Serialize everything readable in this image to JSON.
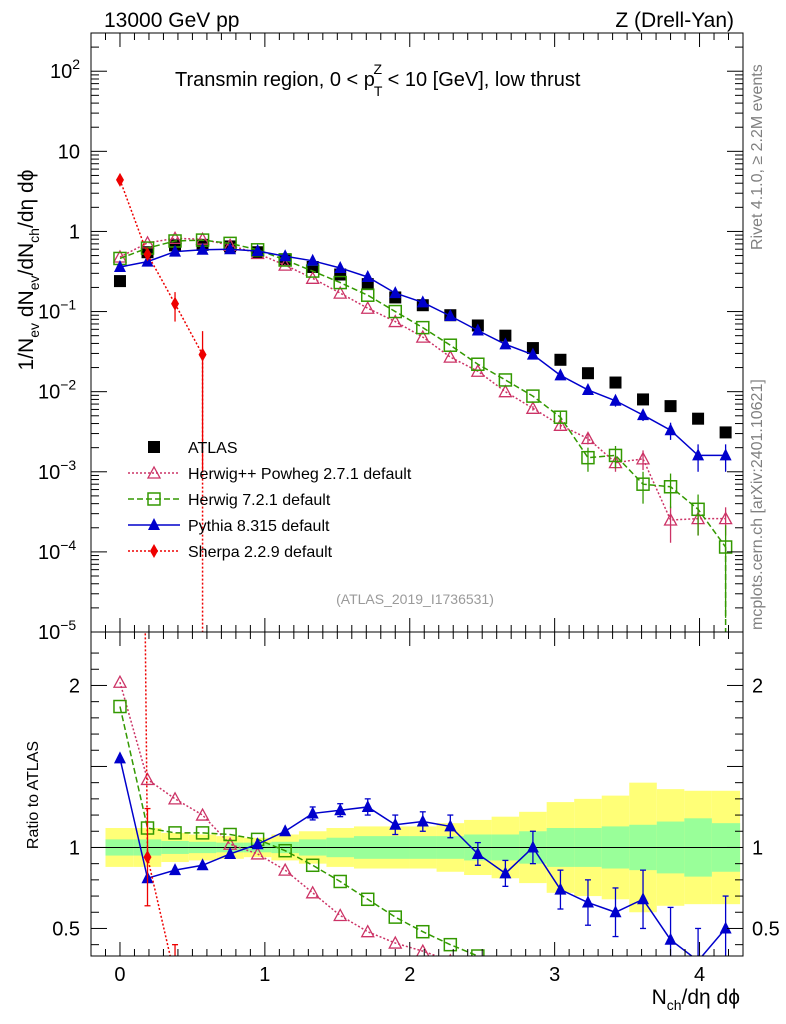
{
  "header": {
    "left": "13000 GeV pp",
    "right": "Z (Drell-Yan)"
  },
  "side_labels": {
    "rivet": "Rivet 4.1.0, ≥ 2.2M events",
    "mcplots": "mcplots.cern.ch [arXiv:2401.10621]"
  },
  "chart_data": {
    "type": "line",
    "title_parts": {
      "prefix": "Transmin region, 0 < p",
      "sup": "Z",
      "sub": "T",
      "suffix": " < 10 [GeV], low thrust"
    },
    "analysis_id": "(ATLAS_2019_I1736531)",
    "ylabel_parts": [
      "1/N",
      "ev",
      " dN",
      "ev",
      "/dN",
      "ch",
      "/dη dϕ"
    ],
    "xlabel_parts": [
      "N",
      "ch",
      "/dη dϕ"
    ],
    "ratio_ylabel": "Ratio to ATLAS",
    "xlim": [
      -0.2,
      4.3
    ],
    "ylim": [
      1e-05,
      300
    ],
    "yscale": "log",
    "x_ticks": [
      0,
      1,
      2,
      3,
      4
    ],
    "x_tick_labels": [
      "0",
      "1",
      "2",
      "3",
      "4"
    ],
    "y_ticks": [
      {
        "value": 100,
        "base": "10",
        "exp": "2"
      },
      {
        "value": 10,
        "base": "10",
        "exp": ""
      },
      {
        "value": 1,
        "base": "1",
        "exp": ""
      },
      {
        "value": 0.1,
        "base": "10",
        "exp": "−1"
      },
      {
        "value": 0.01,
        "base": "10",
        "exp": "−2"
      },
      {
        "value": 0.001,
        "base": "10",
        "exp": "−3"
      },
      {
        "value": 0.0001,
        "base": "10",
        "exp": "−4"
      },
      {
        "value": 1e-05,
        "base": "10",
        "exp": "−5"
      }
    ],
    "ratio_ylim": [
      0.33,
      2.33
    ],
    "ratio_ticks": [
      {
        "value": 2,
        "label": "2"
      },
      {
        "value": 1,
        "label": "1"
      },
      {
        "value": 0.5,
        "label": "0.5"
      }
    ],
    "x": [
      0.0,
      0.19,
      0.38,
      0.57,
      0.76,
      0.95,
      1.14,
      1.33,
      1.52,
      1.71,
      1.9,
      2.09,
      2.28,
      2.47,
      2.66,
      2.85,
      3.04,
      3.23,
      3.42,
      3.61,
      3.8,
      3.99,
      4.18
    ],
    "band_edges": [
      -0.1,
      0.095,
      0.285,
      0.475,
      0.665,
      0.855,
      1.045,
      1.235,
      1.425,
      1.615,
      1.805,
      1.995,
      2.185,
      2.375,
      2.565,
      2.755,
      2.945,
      3.135,
      3.325,
      3.515,
      3.705,
      3.895,
      4.085,
      4.28
    ],
    "band_stat": [
      0.05,
      0.05,
      0.04,
      0.035,
      0.03,
      0.03,
      0.035,
      0.05,
      0.06,
      0.07,
      0.07,
      0.07,
      0.07,
      0.08,
      0.08,
      0.1,
      0.12,
      0.12,
      0.13,
      0.14,
      0.16,
      0.18,
      0.15
    ],
    "band_total": [
      0.12,
      0.12,
      0.09,
      0.08,
      0.07,
      0.06,
      0.08,
      0.1,
      0.12,
      0.13,
      0.13,
      0.13,
      0.15,
      0.17,
      0.19,
      0.22,
      0.28,
      0.3,
      0.32,
      0.4,
      0.36,
      0.35,
      0.35
    ],
    "series": [
      {
        "name": "ATLAS",
        "color": "#000000",
        "marker": "square-filled",
        "line": "none",
        "values": [
          0.24,
          0.55,
          0.67,
          0.68,
          0.65,
          0.55,
          0.45,
          0.36,
          0.29,
          0.22,
          0.15,
          0.12,
          0.09,
          0.067,
          0.05,
          0.035,
          0.025,
          0.017,
          0.013,
          0.008,
          0.0066,
          0.0046,
          0.0031
        ]
      },
      {
        "name": "Herwig++ Powheg 2.7.1 default",
        "color": "#cc3366",
        "marker": "triangle-open",
        "line": "dotted",
        "values": [
          0.48,
          0.72,
          0.82,
          0.8,
          0.67,
          0.53,
          0.38,
          0.26,
          0.17,
          0.11,
          0.075,
          0.048,
          0.027,
          0.018,
          0.01,
          0.0062,
          0.0038,
          0.0026,
          0.0013,
          0.00145,
          0.00025,
          0.00026,
          0.00026
        ],
        "err": [
          0,
          0,
          0,
          0,
          0,
          0,
          0,
          0,
          0,
          0,
          0,
          0,
          0,
          0,
          0,
          0.0004,
          0.0004,
          0.0004,
          0.0003,
          0.0004,
          0.00012,
          0.0001,
          0.0001
        ]
      },
      {
        "name": "Herwig 7.2.1 default",
        "color": "#339900",
        "marker": "square-open",
        "line": "dashed",
        "values": [
          0.46,
          0.62,
          0.76,
          0.78,
          0.71,
          0.59,
          0.44,
          0.32,
          0.23,
          0.16,
          0.1,
          0.063,
          0.038,
          0.022,
          0.014,
          0.0088,
          0.0048,
          0.0015,
          0.0016,
          0.0007,
          0.00065,
          0.00034,
          0.000115
        ],
        "err": [
          0,
          0,
          0,
          0,
          0,
          0,
          0,
          0,
          0,
          0,
          0,
          0,
          0,
          0,
          0,
          0,
          0.0008,
          0.0005,
          0.0005,
          0.0003,
          0.0003,
          0.00018,
          0.0001
        ]
      },
      {
        "name": "Pythia 8.315 default",
        "color": "#0000cc",
        "marker": "triangle-filled",
        "line": "solid",
        "values": [
          0.36,
          0.42,
          0.56,
          0.59,
          0.6,
          0.57,
          0.49,
          0.43,
          0.35,
          0.27,
          0.17,
          0.13,
          0.088,
          0.058,
          0.039,
          0.029,
          0.016,
          0.0105,
          0.0077,
          0.0051,
          0.0033,
          0.0016,
          0.0016
        ],
        "err": [
          0,
          0,
          0,
          0,
          0,
          0,
          0,
          0,
          0,
          0,
          0,
          0,
          0,
          0,
          0,
          0,
          0.0015,
          0.001,
          0.0012,
          0.0008,
          0.0008,
          0.0006,
          0.0006
        ]
      },
      {
        "name": "Sherpa 2.2.9 default",
        "color": "#ee0000",
        "marker": "diamond-filled",
        "line": "dotted",
        "x": [
          0.0,
          0.19,
          0.38,
          0.57
        ],
        "values": [
          4.4,
          0.52,
          0.125,
          0.029
        ],
        "err": [
          0,
          0,
          0.05,
          0.028
        ]
      }
    ],
    "ratios": {
      "Herwig++ Powheg 2.7.1 default": [
        2.02,
        1.42,
        1.3,
        1.2,
        1.02,
        0.96,
        0.86,
        0.72,
        0.58,
        0.48,
        0.41,
        0.36,
        0.3
      ],
      "Herwig 7.2.1 default": [
        1.87,
        1.12,
        1.09,
        1.09,
        1.08,
        1.05,
        0.98,
        0.89,
        0.79,
        0.68,
        0.57,
        0.48,
        0.4,
        0.33
      ],
      "Pythia 8.315 default": [
        1.55,
        0.81,
        0.86,
        0.89,
        0.96,
        1.02,
        1.1,
        1.21,
        1.23,
        1.25,
        1.14,
        1.16,
        1.13,
        0.96,
        0.84,
        1.0,
        0.74,
        0.66,
        0.6,
        0.68,
        0.43,
        0.3,
        0.5
      ],
      "Pythia 8.315 default_err": [
        0,
        0,
        0,
        0,
        0,
        0,
        0,
        0.04,
        0.04,
        0.05,
        0.06,
        0.06,
        0.07,
        0.07,
        0.08,
        0.1,
        0.12,
        0.14,
        0.15,
        0.18,
        0.2,
        0.2,
        0.2
      ],
      "Sherpa 2.2.9 default": [
        18,
        0.94,
        0.2
      ],
      "Sherpa 2.2.9 default_err": [
        0,
        0.3,
        0.2
      ]
    }
  }
}
